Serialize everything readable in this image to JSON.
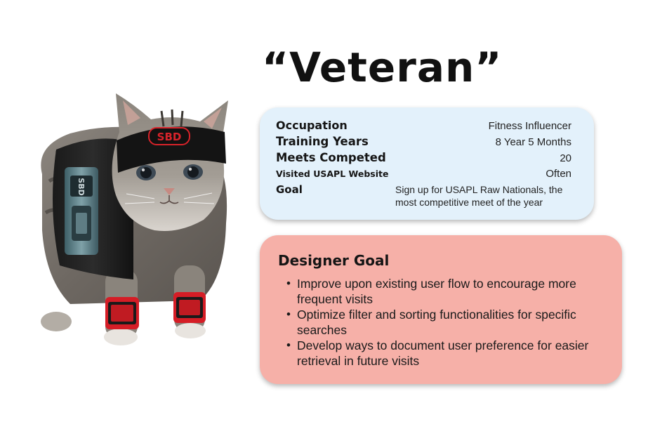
{
  "title": "“Veteran”",
  "profile": {
    "rows": [
      {
        "label": "Occupation",
        "value": "Fitness Influencer"
      },
      {
        "label": "Training Years",
        "value": "8 Year 5 Months"
      },
      {
        "label": "Meets Competed",
        "value": "20"
      },
      {
        "label": "Visited USAPL Website",
        "value": "Often"
      },
      {
        "label": "Goal",
        "value": "Sign up for USAPL Raw Nationals, the most competitive meet of the year"
      }
    ]
  },
  "designer_goal": {
    "heading": "Designer Goal",
    "items": [
      "Improve upon existing user flow to encourage more frequent visits",
      "Optimize filter and sorting functionalities for specific searches",
      "Develop ways to document user preference for easier retrieval in future visits"
    ]
  },
  "image": {
    "subject": "cat wearing weightlifting belt, headband and wrist wraps",
    "headband_logo": "SBD",
    "belt_logo": "SBD"
  },
  "colors": {
    "profile_card_bg": "#e3f1fb",
    "designer_card_bg": "#f6b0a8",
    "title_color": "#111111",
    "headband_logo_red": "#d8232a",
    "wrap_red": "#d51d26"
  }
}
